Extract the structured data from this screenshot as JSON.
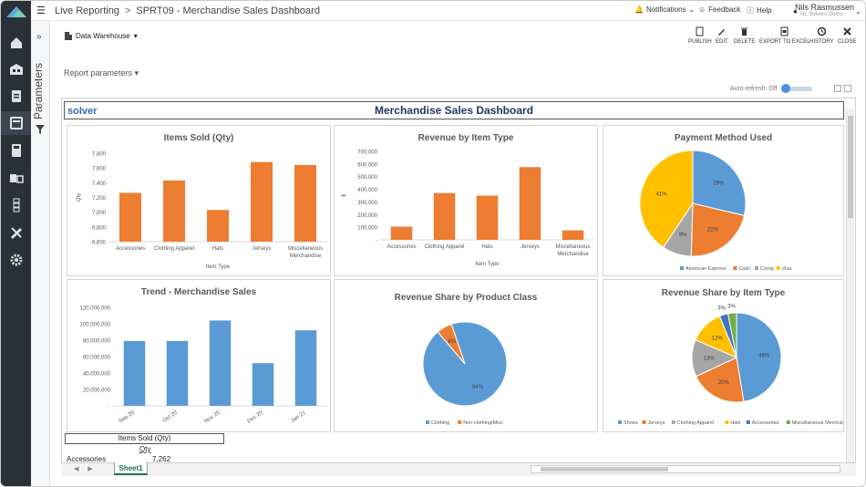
{
  "topbar": {
    "menu_icon": "hamburger-icon",
    "crumb_root": "Live Reporting",
    "crumb_page": "SPRT09 - Merchandise Sales Dashboard",
    "notifications": "Notifications",
    "feedback": "Feedback",
    "help": "Help",
    "user_name": "Nils Rasmussen",
    "user_role": "NL Solvers Demo"
  },
  "rail": {
    "items": [
      "home-icon",
      "warehouse-icon",
      "clipboard-icon",
      "report-icon",
      "calculator-icon",
      "forms-icon",
      "hierarchy-icon",
      "tools-icon",
      "gear-icon"
    ],
    "active_index": 3
  },
  "parameters": {
    "label": "Parameters",
    "chevron": "»"
  },
  "toolbar": {
    "data_source": "Data Warehouse",
    "buttons": [
      "PUBLISH",
      "EDIT",
      "DELETE",
      "EXPORT TO EXCEL",
      "HISTORY",
      "CLOSE"
    ]
  },
  "report_params": "Report parameters",
  "auto_refresh": "Auto-refresh: Off",
  "dashboard": {
    "brand": "solver",
    "title": "Merchandise Sales Dashboard",
    "pivot_header": "Items Sold (Qty)",
    "pivot_col": "Qty",
    "pivot_row_label": "Accessories",
    "pivot_row_value": "7,262",
    "sheet_tab": "Sheet1"
  },
  "chart_data": [
    {
      "type": "bar",
      "title": "Items Sold (Qty)",
      "xlabel": "Item Type",
      "ylabel": "Qty",
      "categories": [
        "Accessories",
        "Clothing Apparel",
        "Hats",
        "Jerseys",
        "Miscellaneous Merchandise"
      ],
      "values": [
        7262,
        7430,
        7030,
        7680,
        7640
      ],
      "ylim": [
        6600,
        7800
      ],
      "ticks": [
        "6,600",
        "6,800",
        "7,000",
        "7,200",
        "7,400",
        "7,600",
        "7,800"
      ],
      "color": "#ed7d31"
    },
    {
      "type": "bar",
      "title": "Revenue by Item Type",
      "xlabel": "Item Type",
      "ylabel": "$",
      "categories": [
        "Accessories",
        "Clothing Apparel",
        "Hats",
        "Jerseys",
        "Miscellaneous Merchandise"
      ],
      "values": [
        105000,
        370000,
        350000,
        575000,
        75000
      ],
      "ylim": [
        0,
        700000
      ],
      "ticks": [
        "-",
        "100,000",
        "200,000",
        "300,000",
        "400,000",
        "500,000",
        "600,000",
        "700,000"
      ],
      "color": "#ed7d31"
    },
    {
      "type": "pie",
      "title": "Payment Method Used",
      "slices": [
        {
          "label": "American Express",
          "value": 29,
          "color": "#5b9bd5"
        },
        {
          "label": "Cash",
          "value": 22,
          "color": "#ed7d31"
        },
        {
          "label": "Comp",
          "value": 9,
          "color": "#a5a5a5"
        },
        {
          "label": "Visa",
          "value": 41,
          "color": "#ffc000"
        }
      ]
    },
    {
      "type": "bar",
      "title": "Trend - Merchandise Sales",
      "categories": [
        "Sep 20",
        "Oct 20",
        "Nov 20",
        "Dec 20",
        "Jan 21"
      ],
      "values": [
        79000000,
        79000000,
        104000000,
        52000000,
        92000000
      ],
      "ylim": [
        0,
        120000000
      ],
      "ticks": [
        "-",
        "20,000,000",
        "40,000,000",
        "60,000,000",
        "80,000,000",
        "100,000,000",
        "120,000,000"
      ],
      "color": "#5b9bd5"
    },
    {
      "type": "pie",
      "title": "Revenue Share by Product Class",
      "slices": [
        {
          "label": "Clothing",
          "value": 94,
          "color": "#5b9bd5"
        },
        {
          "label": "Non-clothing/Misc",
          "value": 6,
          "color": "#ed7d31"
        }
      ]
    },
    {
      "type": "pie",
      "title": "Revenue Share by Item Type",
      "slices": [
        {
          "label": "Shoes",
          "value": 46,
          "color": "#5b9bd5"
        },
        {
          "label": "Jerseys",
          "value": 20,
          "color": "#ed7d31"
        },
        {
          "label": "Clothing Apparel",
          "value": 13,
          "color": "#a5a5a5"
        },
        {
          "label": "Hats",
          "value": 12,
          "color": "#ffc000"
        },
        {
          "label": "Accessories",
          "value": 3,
          "color": "#4472c4"
        },
        {
          "label": "Miscellaneous Merchandise",
          "value": 3,
          "color": "#70ad47"
        }
      ]
    }
  ]
}
